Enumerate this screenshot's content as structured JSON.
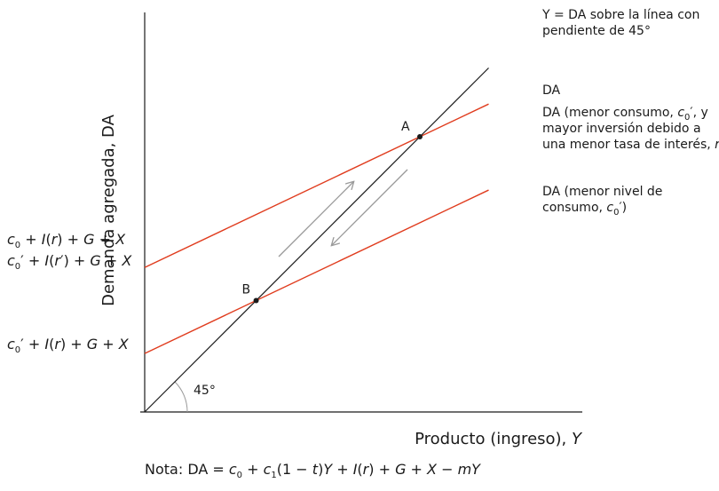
{
  "chart_data": {
    "type": "line",
    "xlabel": "Producto (ingreso), Y",
    "ylabel": "Demanda agregada, DA",
    "note": "Nota: DA = c0 + c1(1 − t)Y + I(r) + G + X − mY",
    "angle_label": "45°",
    "lines": [
      {
        "key": "line45",
        "label_lines": [
          "Y = DA sobre la línea con",
          "pendiente de 45°"
        ],
        "color": "#1a1a1a",
        "points": [
          [
            0,
            0
          ],
          [
            10,
            10
          ]
        ]
      },
      {
        "key": "da_original",
        "label_lines": [
          "DA"
        ],
        "color": "#e03c1e",
        "intercept_label": "c0 + I(r) + G + X",
        "points": [
          [
            0,
            4.2
          ],
          [
            10,
            8.95
          ]
        ]
      },
      {
        "key": "da_lower_consumption",
        "label_lines": [
          "DA (menor nivel de",
          "consumo, c0′)"
        ],
        "color": "#e03c1e",
        "intercept_label": "c0′ + I(r) + G + X",
        "points": [
          [
            0,
            1.7
          ],
          [
            10,
            6.45
          ]
        ]
      }
    ],
    "shared_line_label_lines": [
      "DA (menor consumo, c0′, y",
      "mayor inversión debido a",
      "una menor tasa de interés, r)"
    ],
    "shared_intercept_label": "c0′ + I(r′) + G + X",
    "points": [
      {
        "label": "A",
        "x": 8.0,
        "y": 8.0
      },
      {
        "label": "B",
        "x": 3.24,
        "y": 3.24
      }
    ],
    "arrows": [
      {
        "direction": "up-right",
        "color": "#999999"
      },
      {
        "direction": "down-left",
        "color": "#999999"
      }
    ]
  }
}
